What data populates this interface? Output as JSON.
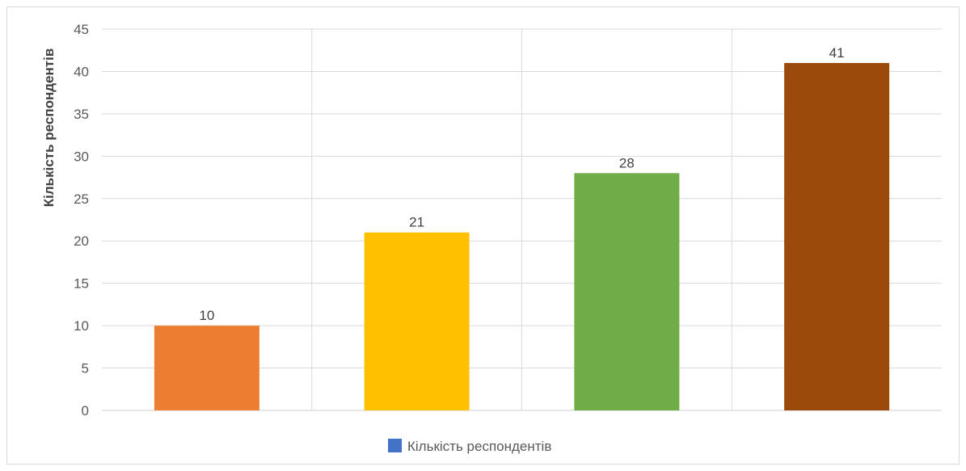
{
  "chart_data": {
    "type": "bar",
    "title": "",
    "xlabel": "",
    "ylabel": "Кількість респондентів",
    "categories": [
      "",
      "",
      "",
      ""
    ],
    "series": [
      {
        "name": "Кількість респондентів",
        "values": [
          10,
          21,
          28,
          41
        ],
        "legend_color": "#4472c4"
      }
    ],
    "bar_colors": [
      "#ed7d31",
      "#ffc000",
      "#70ad47",
      "#9c4a0c"
    ],
    "ylim": [
      0,
      45
    ],
    "yticks": [
      0,
      5,
      10,
      15,
      20,
      25,
      30,
      35,
      40,
      45
    ],
    "grid": true,
    "legend_position": "bottom",
    "data_labels": true
  }
}
